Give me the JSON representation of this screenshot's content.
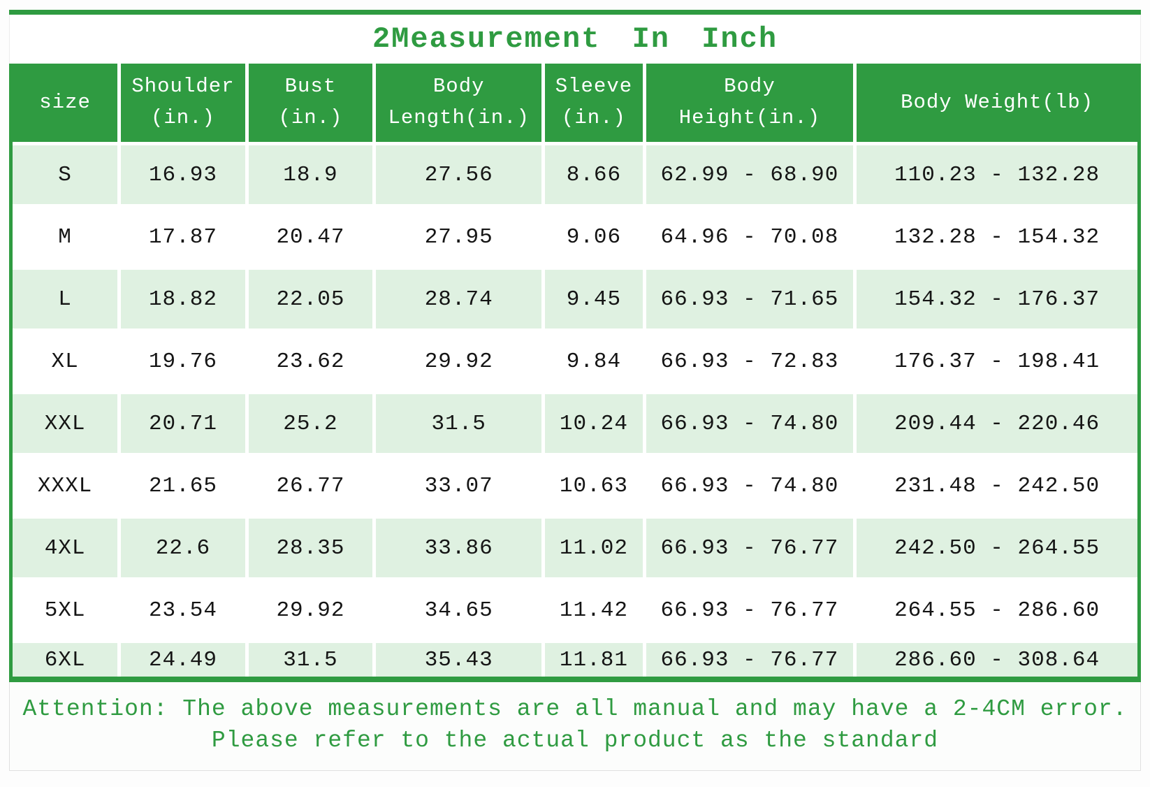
{
  "title": "2Measurement In Inch",
  "colors": {
    "accent_green": "#2f9b41",
    "row_light_green": "#dff1e1",
    "header_text": "#ffffff",
    "cell_text": "#151515"
  },
  "table": {
    "columns": [
      {
        "key": "size",
        "label": "size"
      },
      {
        "key": "shoulder",
        "label": "Shoulder\n(in.)"
      },
      {
        "key": "bust",
        "label": "Bust\n(in.)"
      },
      {
        "key": "body_length",
        "label": "Body\nLength(in.)"
      },
      {
        "key": "sleeve",
        "label": "Sleeve\n(in.)"
      },
      {
        "key": "body_height",
        "label": "Body\nHeight(in.)"
      },
      {
        "key": "body_weight",
        "label": "Body Weight(lb)"
      }
    ],
    "rows": [
      {
        "size": "S",
        "shoulder": "16.93",
        "bust": "18.9",
        "body_length": "27.56",
        "sleeve": "8.66",
        "body_height": "62.99 - 68.90",
        "body_weight": "110.23 - 132.28"
      },
      {
        "size": "M",
        "shoulder": "17.87",
        "bust": "20.47",
        "body_length": "27.95",
        "sleeve": "9.06",
        "body_height": "64.96 - 70.08",
        "body_weight": "132.28 - 154.32"
      },
      {
        "size": "L",
        "shoulder": "18.82",
        "bust": "22.05",
        "body_length": "28.74",
        "sleeve": "9.45",
        "body_height": "66.93 - 71.65",
        "body_weight": "154.32 - 176.37"
      },
      {
        "size": "XL",
        "shoulder": "19.76",
        "bust": "23.62",
        "body_length": "29.92",
        "sleeve": "9.84",
        "body_height": "66.93 - 72.83",
        "body_weight": "176.37 - 198.41"
      },
      {
        "size": "XXL",
        "shoulder": "20.71",
        "bust": "25.2",
        "body_length": "31.5",
        "sleeve": "10.24",
        "body_height": "66.93 - 74.80",
        "body_weight": "209.44 - 220.46"
      },
      {
        "size": "XXXL",
        "shoulder": "21.65",
        "bust": "26.77",
        "body_length": "33.07",
        "sleeve": "10.63",
        "body_height": "66.93 - 74.80",
        "body_weight": "231.48 - 242.50"
      },
      {
        "size": "4XL",
        "shoulder": "22.6",
        "bust": "28.35",
        "body_length": "33.86",
        "sleeve": "11.02",
        "body_height": "66.93 - 76.77",
        "body_weight": "242.50 - 264.55"
      },
      {
        "size": "5XL",
        "shoulder": "23.54",
        "bust": "29.92",
        "body_length": "34.65",
        "sleeve": "11.42",
        "body_height": "66.93 - 76.77",
        "body_weight": "264.55 - 286.60"
      },
      {
        "size": "6XL",
        "shoulder": "24.49",
        "bust": "31.5",
        "body_length": "35.43",
        "sleeve": "11.81",
        "body_height": "66.93 - 76.77",
        "body_weight": "286.60 - 308.64"
      }
    ]
  },
  "footer": {
    "line1": "Attention: The above measurements are all manual and may have a 2-4CM error.",
    "line2": "Please refer to the actual product as the standard"
  }
}
